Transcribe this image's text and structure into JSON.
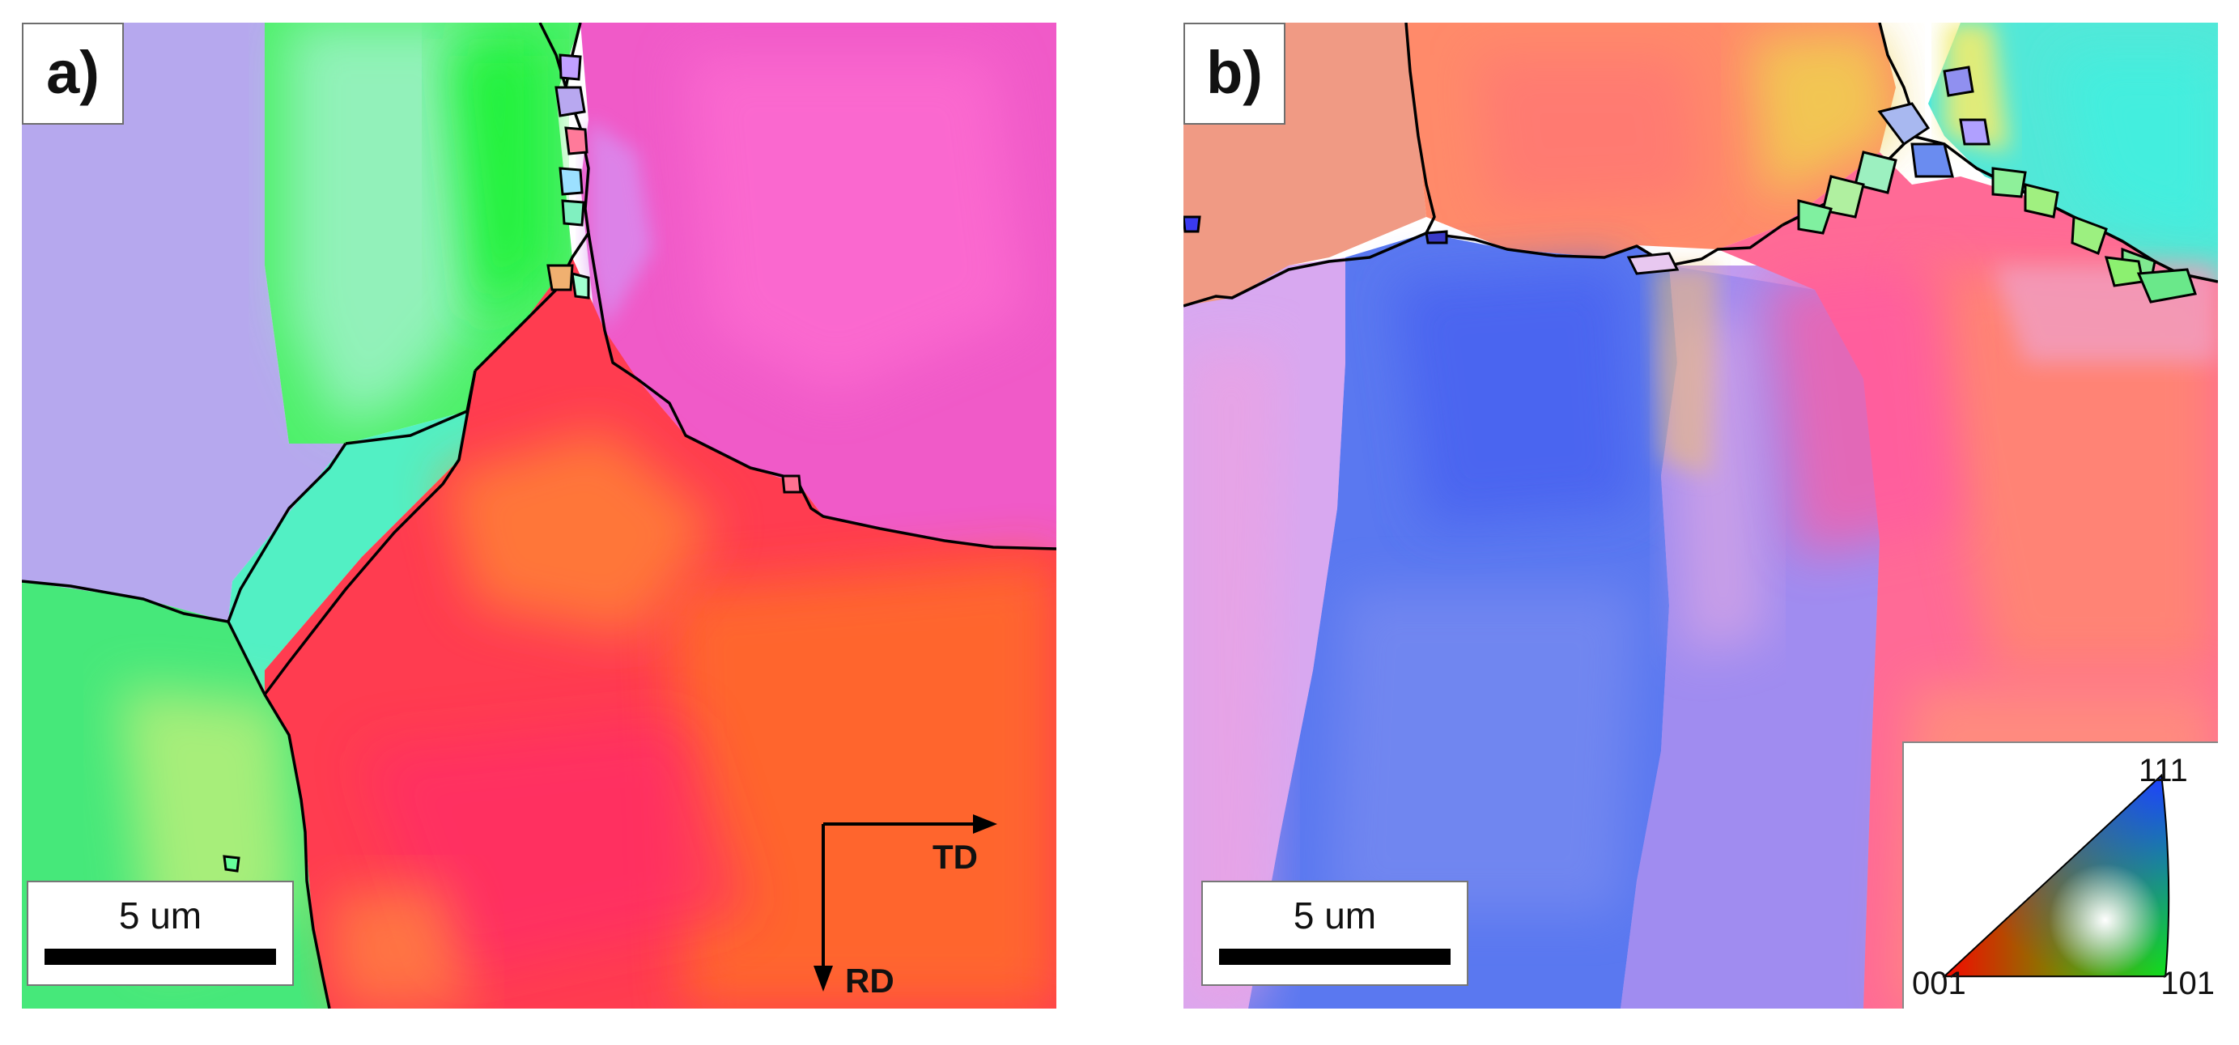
{
  "panels": [
    {
      "label": "a)",
      "scale_bar": "5 um",
      "axes": {
        "horizontal": "TD",
        "vertical": "RD"
      }
    },
    {
      "label": "b)",
      "scale_bar": "5 um",
      "color_key": {
        "corner_left": "001",
        "corner_right": "101",
        "corner_top": "111"
      }
    }
  ],
  "colors": {
    "red_001": "#ff2a4a",
    "green_101": "#2ef25a",
    "blue_111": "#4a6cf0",
    "violet": "#a58cf2",
    "pink": "#f05ac8",
    "orange": "#ff6a2a",
    "boundary": "#000000"
  }
}
